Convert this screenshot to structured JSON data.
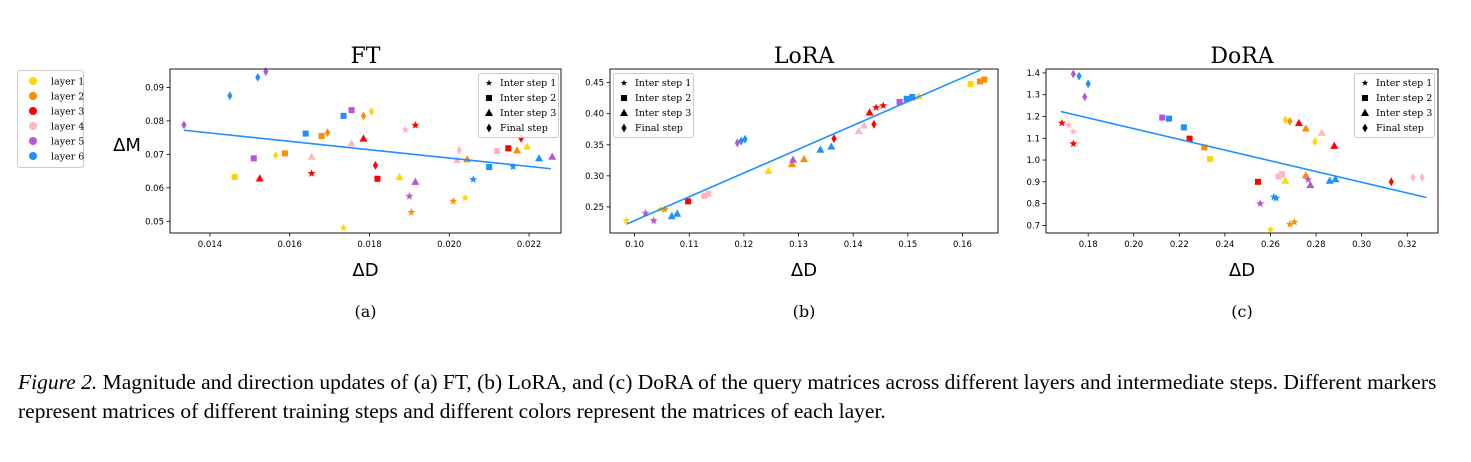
{
  "layer_legend": {
    "entries": [
      {
        "label": "layer 1",
        "color": "#FFD700"
      },
      {
        "label": "layer 2",
        "color": "#FF8C00"
      },
      {
        "label": "layer 3",
        "color": "#FF0000"
      },
      {
        "label": "layer 4",
        "color": "#FFB6C1"
      },
      {
        "label": "layer 5",
        "color": "#BA55D3"
      },
      {
        "label": "layer 6",
        "color": "#1E90FF"
      }
    ]
  },
  "marker_legend": {
    "entries": [
      {
        "label": "Inter step 1",
        "marker": "star"
      },
      {
        "label": "Inter step 2",
        "marker": "square"
      },
      {
        "label": "Inter step 3",
        "marker": "triangle"
      },
      {
        "label": "Final step",
        "marker": "diamond"
      }
    ]
  },
  "caption": {
    "lead": "Figure 2.",
    "text": " Magnitude and direction updates of (a) FT, (b) LoRA, and (c) DoRA of the query matrices across different layers and intermediate steps. Different markers represent matrices of different training steps and different colors represent the matrices of each layer."
  },
  "chart_data": [
    {
      "type": "scatter",
      "title": "FT",
      "xlabel": "ΔD",
      "ylabel": "ΔM",
      "sublabel": "(a)",
      "xlim": [
        0.013,
        0.0228
      ],
      "ylim": [
        0.0465,
        0.0955
      ],
      "xticks": [
        0.014,
        0.016,
        0.018,
        0.02,
        0.022
      ],
      "xtick_labels": [
        "0.014",
        "0.016",
        "0.018",
        "0.020",
        "0.022"
      ],
      "yticks": [
        0.05,
        0.06,
        0.07,
        0.08,
        0.09
      ],
      "ytick_labels": [
        "0.05",
        "0.06",
        "0.07",
        "0.08",
        "0.09"
      ],
      "marker_legend_position": "top-right",
      "fit_line": [
        [
          0.01335,
          0.0772
        ],
        [
          0.02255,
          0.0657
        ]
      ],
      "points": [
        {
          "layer": 1,
          "marker": "square",
          "x": 0.01462,
          "y": 0.0632
        },
        {
          "layer": 1,
          "marker": "diamond",
          "x": 0.01565,
          "y": 0.0697
        },
        {
          "layer": 1,
          "marker": "star",
          "x": 0.01735,
          "y": 0.048
        },
        {
          "layer": 1,
          "marker": "diamond",
          "x": 0.01805,
          "y": 0.0828
        },
        {
          "layer": 1,
          "marker": "triangle",
          "x": 0.01875,
          "y": 0.0632
        },
        {
          "layer": 1,
          "marker": "star",
          "x": 0.0204,
          "y": 0.057
        },
        {
          "layer": 1,
          "marker": "triangle",
          "x": 0.02195,
          "y": 0.0723
        },
        {
          "layer": 2,
          "marker": "square",
          "x": 0.01588,
          "y": 0.0703
        },
        {
          "layer": 2,
          "marker": "square",
          "x": 0.0168,
          "y": 0.0755
        },
        {
          "layer": 2,
          "marker": "diamond",
          "x": 0.01695,
          "y": 0.0765
        },
        {
          "layer": 2,
          "marker": "diamond",
          "x": 0.01785,
          "y": 0.0815
        },
        {
          "layer": 2,
          "marker": "star",
          "x": 0.01905,
          "y": 0.0527
        },
        {
          "layer": 2,
          "marker": "star",
          "x": 0.0201,
          "y": 0.056
        },
        {
          "layer": 2,
          "marker": "triangle",
          "x": 0.02045,
          "y": 0.0685
        },
        {
          "layer": 2,
          "marker": "triangle",
          "x": 0.0217,
          "y": 0.0712
        },
        {
          "layer": 3,
          "marker": "triangle",
          "x": 0.01525,
          "y": 0.0628
        },
        {
          "layer": 3,
          "marker": "star",
          "x": 0.01655,
          "y": 0.0643
        },
        {
          "layer": 3,
          "marker": "triangle",
          "x": 0.01785,
          "y": 0.0747
        },
        {
          "layer": 3,
          "marker": "diamond",
          "x": 0.01815,
          "y": 0.0667
        },
        {
          "layer": 3,
          "marker": "square",
          "x": 0.0182,
          "y": 0.0627
        },
        {
          "layer": 3,
          "marker": "star",
          "x": 0.01915,
          "y": 0.0787
        },
        {
          "layer": 3,
          "marker": "square",
          "x": 0.02148,
          "y": 0.0718
        },
        {
          "layer": 3,
          "marker": "diamond",
          "x": 0.0218,
          "y": 0.0748
        },
        {
          "layer": 4,
          "marker": "triangle",
          "x": 0.01655,
          "y": 0.0693
        },
        {
          "layer": 4,
          "marker": "triangle",
          "x": 0.01755,
          "y": 0.0733
        },
        {
          "layer": 4,
          "marker": "star",
          "x": 0.0189,
          "y": 0.0773
        },
        {
          "layer": 4,
          "marker": "triangle",
          "x": 0.0202,
          "y": 0.0683
        },
        {
          "layer": 4,
          "marker": "diamond",
          "x": 0.02025,
          "y": 0.0712
        },
        {
          "layer": 4,
          "marker": "square",
          "x": 0.0212,
          "y": 0.071
        },
        {
          "layer": 5,
          "marker": "diamond",
          "x": 0.01335,
          "y": 0.0788
        },
        {
          "layer": 5,
          "marker": "square",
          "x": 0.0151,
          "y": 0.0688
        },
        {
          "layer": 5,
          "marker": "diamond",
          "x": 0.0154,
          "y": 0.0947
        },
        {
          "layer": 5,
          "marker": "square",
          "x": 0.01755,
          "y": 0.0832
        },
        {
          "layer": 5,
          "marker": "star",
          "x": 0.019,
          "y": 0.0575
        },
        {
          "layer": 5,
          "marker": "triangle",
          "x": 0.01915,
          "y": 0.0618
        },
        {
          "layer": 5,
          "marker": "triangle",
          "x": 0.02258,
          "y": 0.0693
        },
        {
          "layer": 6,
          "marker": "diamond",
          "x": 0.0145,
          "y": 0.0875
        },
        {
          "layer": 6,
          "marker": "diamond",
          "x": 0.0152,
          "y": 0.093
        },
        {
          "layer": 6,
          "marker": "square",
          "x": 0.0164,
          "y": 0.0762
        },
        {
          "layer": 6,
          "marker": "square",
          "x": 0.01735,
          "y": 0.0815
        },
        {
          "layer": 6,
          "marker": "star",
          "x": 0.0206,
          "y": 0.0625
        },
        {
          "layer": 6,
          "marker": "square",
          "x": 0.021,
          "y": 0.0662
        },
        {
          "layer": 6,
          "marker": "star",
          "x": 0.0216,
          "y": 0.0663
        },
        {
          "layer": 6,
          "marker": "triangle",
          "x": 0.02225,
          "y": 0.0688
        }
      ]
    },
    {
      "type": "scatter",
      "title": "LoRA",
      "xlabel": "ΔD",
      "ylabel": "",
      "sublabel": "(b)",
      "xlim": [
        0.0955,
        0.1665
      ],
      "ylim": [
        0.208,
        0.472
      ],
      "xticks": [
        0.1,
        0.11,
        0.12,
        0.13,
        0.14,
        0.15,
        0.16
      ],
      "xtick_labels": [
        "0.10",
        "0.11",
        "0.12",
        "0.13",
        "0.14",
        "0.15",
        "0.16"
      ],
      "yticks": [
        0.25,
        0.3,
        0.35,
        0.4,
        0.45
      ],
      "ytick_labels": [
        "0.25",
        "0.30",
        "0.35",
        "0.40",
        "0.45"
      ],
      "marker_legend_position": "top-left",
      "fit_line": [
        [
          0.0985,
          0.2222
        ],
        [
          0.1633,
          0.4705
        ]
      ],
      "points": [
        {
          "layer": 1,
          "marker": "star",
          "x": 0.0985,
          "y": 0.228
        },
        {
          "layer": 1,
          "marker": "star",
          "x": 0.1048,
          "y": 0.246
        },
        {
          "layer": 1,
          "marker": "triangle",
          "x": 0.1245,
          "y": 0.308
        },
        {
          "layer": 1,
          "marker": "triangle",
          "x": 0.152,
          "y": 0.428
        },
        {
          "layer": 1,
          "marker": "square",
          "x": 0.1615,
          "y": 0.448
        },
        {
          "layer": 2,
          "marker": "star",
          "x": 0.1055,
          "y": 0.246
        },
        {
          "layer": 2,
          "marker": "triangle",
          "x": 0.1288,
          "y": 0.319
        },
        {
          "layer": 2,
          "marker": "triangle",
          "x": 0.131,
          "y": 0.327
        },
        {
          "layer": 2,
          "marker": "square",
          "x": 0.1632,
          "y": 0.452
        },
        {
          "layer": 2,
          "marker": "square",
          "x": 0.164,
          "y": 0.455
        },
        {
          "layer": 3,
          "marker": "square",
          "x": 0.1098,
          "y": 0.259
        },
        {
          "layer": 3,
          "marker": "diamond",
          "x": 0.1365,
          "y": 0.36
        },
        {
          "layer": 3,
          "marker": "triangle",
          "x": 0.143,
          "y": 0.402
        },
        {
          "layer": 3,
          "marker": "diamond",
          "x": 0.1438,
          "y": 0.383
        },
        {
          "layer": 3,
          "marker": "star",
          "x": 0.1442,
          "y": 0.41
        },
        {
          "layer": 3,
          "marker": "star",
          "x": 0.1455,
          "y": 0.413
        },
        {
          "layer": 4,
          "marker": "square",
          "x": 0.1128,
          "y": 0.268
        },
        {
          "layer": 4,
          "marker": "square",
          "x": 0.1135,
          "y": 0.271
        },
        {
          "layer": 4,
          "marker": "triangle",
          "x": 0.141,
          "y": 0.372
        },
        {
          "layer": 4,
          "marker": "triangle",
          "x": 0.142,
          "y": 0.381
        },
        {
          "layer": 4,
          "marker": "square",
          "x": 0.151,
          "y": 0.425
        },
        {
          "layer": 5,
          "marker": "star",
          "x": 0.102,
          "y": 0.24
        },
        {
          "layer": 5,
          "marker": "star",
          "x": 0.1035,
          "y": 0.228
        },
        {
          "layer": 5,
          "marker": "diamond",
          "x": 0.1188,
          "y": 0.353
        },
        {
          "layer": 5,
          "marker": "triangle",
          "x": 0.129,
          "y": 0.326
        },
        {
          "layer": 5,
          "marker": "square",
          "x": 0.1485,
          "y": 0.419
        },
        {
          "layer": 6,
          "marker": "triangle",
          "x": 0.1068,
          "y": 0.235
        },
        {
          "layer": 6,
          "marker": "triangle",
          "x": 0.1078,
          "y": 0.239
        },
        {
          "layer": 6,
          "marker": "diamond",
          "x": 0.1195,
          "y": 0.356
        },
        {
          "layer": 6,
          "marker": "diamond",
          "x": 0.1202,
          "y": 0.359
        },
        {
          "layer": 6,
          "marker": "triangle",
          "x": 0.134,
          "y": 0.342
        },
        {
          "layer": 6,
          "marker": "triangle",
          "x": 0.136,
          "y": 0.347
        },
        {
          "layer": 6,
          "marker": "square",
          "x": 0.1498,
          "y": 0.424
        },
        {
          "layer": 6,
          "marker": "square",
          "x": 0.1508,
          "y": 0.427
        }
      ]
    },
    {
      "type": "scatter",
      "title": "DoRA",
      "xlabel": "ΔD",
      "ylabel": "",
      "sublabel": "(c)",
      "xlim": [
        0.1615,
        0.3335
      ],
      "ylim": [
        0.665,
        1.418
      ],
      "xticks": [
        0.16,
        0.18,
        0.2,
        0.22,
        0.24,
        0.26,
        0.28,
        0.3,
        0.32
      ],
      "xtick_labels": [
        "0.16",
        "0.18",
        "0.20",
        "0.22",
        "0.24",
        "0.26",
        "0.28",
        "0.30",
        "0.32"
      ],
      "yticks": [
        0.7,
        0.8,
        0.9,
        1.0,
        1.1,
        1.2,
        1.3,
        1.4
      ],
      "ytick_labels": [
        "0.7",
        "0.8",
        "0.9",
        "1.0",
        "1.1",
        "1.2",
        "1.3",
        "1.4"
      ],
      "marker_legend_position": "top-right",
      "fit_line": [
        [
          0.168,
          1.223
        ],
        [
          0.3285,
          0.828
        ]
      ],
      "points": [
        {
          "layer": 1,
          "marker": "square",
          "x": 0.2335,
          "y": 1.005
        },
        {
          "layer": 1,
          "marker": "star",
          "x": 0.26,
          "y": 0.68
        },
        {
          "layer": 1,
          "marker": "diamond",
          "x": 0.2665,
          "y": 1.185
        },
        {
          "layer": 1,
          "marker": "triangle",
          "x": 0.2665,
          "y": 0.905
        },
        {
          "layer": 1,
          "marker": "diamond",
          "x": 0.2795,
          "y": 1.085
        },
        {
          "layer": 2,
          "marker": "square",
          "x": 0.231,
          "y": 1.058
        },
        {
          "layer": 2,
          "marker": "diamond",
          "x": 0.2685,
          "y": 1.178
        },
        {
          "layer": 2,
          "marker": "star",
          "x": 0.2685,
          "y": 0.705
        },
        {
          "layer": 2,
          "marker": "star",
          "x": 0.2705,
          "y": 0.715
        },
        {
          "layer": 2,
          "marker": "triangle",
          "x": 0.2755,
          "y": 1.145
        },
        {
          "layer": 2,
          "marker": "triangle",
          "x": 0.2755,
          "y": 0.93
        },
        {
          "layer": 3,
          "marker": "star",
          "x": 0.1685,
          "y": 1.17
        },
        {
          "layer": 3,
          "marker": "star",
          "x": 0.1735,
          "y": 1.075
        },
        {
          "layer": 3,
          "marker": "square",
          "x": 0.2245,
          "y": 1.098
        },
        {
          "layer": 3,
          "marker": "square",
          "x": 0.2545,
          "y": 0.9
        },
        {
          "layer": 3,
          "marker": "triangle",
          "x": 0.2725,
          "y": 1.17
        },
        {
          "layer": 3,
          "marker": "triangle",
          "x": 0.288,
          "y": 1.065
        },
        {
          "layer": 3,
          "marker": "diamond",
          "x": 0.313,
          "y": 0.9
        },
        {
          "layer": 4,
          "marker": "star",
          "x": 0.1715,
          "y": 1.16
        },
        {
          "layer": 4,
          "marker": "star",
          "x": 0.1735,
          "y": 1.13
        },
        {
          "layer": 4,
          "marker": "square",
          "x": 0.2635,
          "y": 0.925
        },
        {
          "layer": 4,
          "marker": "square",
          "x": 0.265,
          "y": 0.935
        },
        {
          "layer": 4,
          "marker": "triangle",
          "x": 0.2825,
          "y": 1.125
        },
        {
          "layer": 4,
          "marker": "diamond",
          "x": 0.3225,
          "y": 0.92
        },
        {
          "layer": 4,
          "marker": "diamond",
          "x": 0.3265,
          "y": 0.92
        },
        {
          "layer": 5,
          "marker": "diamond",
          "x": 0.1735,
          "y": 1.395
        },
        {
          "layer": 5,
          "marker": "diamond",
          "x": 0.1785,
          "y": 1.29
        },
        {
          "layer": 5,
          "marker": "square",
          "x": 0.2125,
          "y": 1.195
        },
        {
          "layer": 5,
          "marker": "star",
          "x": 0.2555,
          "y": 0.8
        },
        {
          "layer": 5,
          "marker": "triangle",
          "x": 0.2775,
          "y": 0.885
        },
        {
          "layer": 5,
          "marker": "star",
          "x": 0.2765,
          "y": 0.91
        },
        {
          "layer": 6,
          "marker": "diamond",
          "x": 0.176,
          "y": 1.385
        },
        {
          "layer": 6,
          "marker": "diamond",
          "x": 0.18,
          "y": 1.35
        },
        {
          "layer": 6,
          "marker": "square",
          "x": 0.2155,
          "y": 1.19
        },
        {
          "layer": 6,
          "marker": "square",
          "x": 0.222,
          "y": 1.15
        },
        {
          "layer": 6,
          "marker": "star",
          "x": 0.2615,
          "y": 0.83
        },
        {
          "layer": 6,
          "marker": "star",
          "x": 0.2625,
          "y": 0.825
        },
        {
          "layer": 6,
          "marker": "triangle",
          "x": 0.286,
          "y": 0.905
        },
        {
          "layer": 6,
          "marker": "triangle",
          "x": 0.2885,
          "y": 0.912
        }
      ]
    }
  ]
}
